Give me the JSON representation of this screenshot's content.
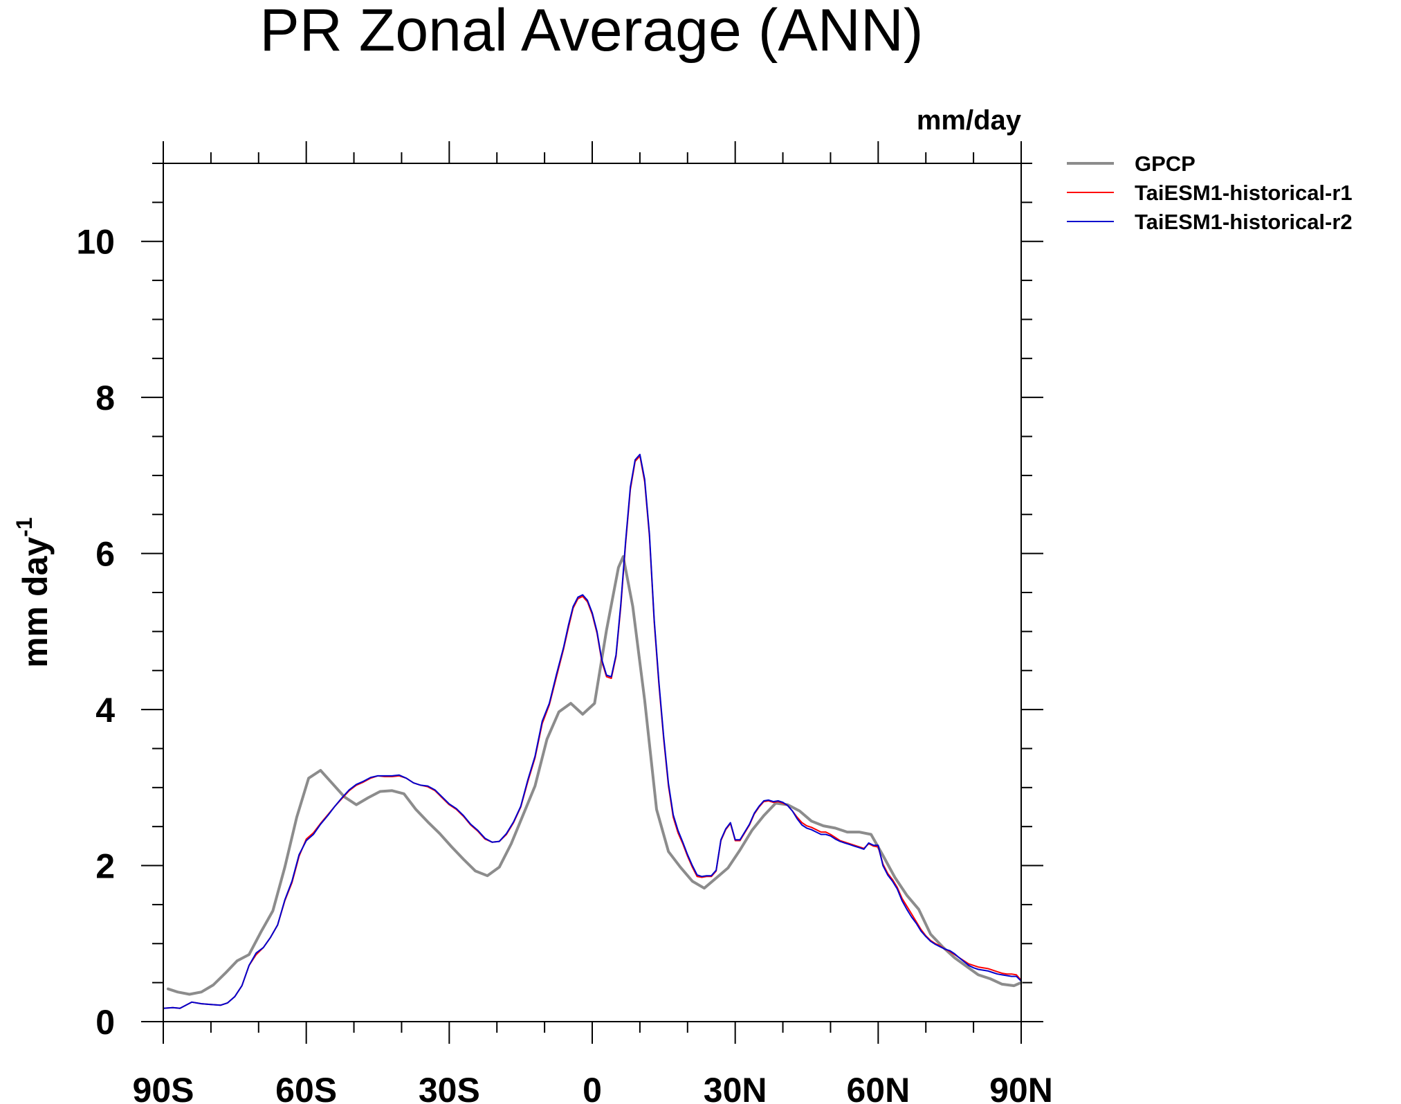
{
  "chart_data": {
    "type": "line",
    "title": "PR Zonal Average (ANN)",
    "units": "mm/day",
    "ylabel": "mm day",
    "ylabel_superscript": "-1",
    "xlim": [
      -90,
      90
    ],
    "ylim": [
      0,
      11
    ],
    "x_ticks": [
      {
        "value": -90,
        "label": "90S"
      },
      {
        "value": -60,
        "label": "60S"
      },
      {
        "value": -30,
        "label": "30S"
      },
      {
        "value": 0,
        "label": "0"
      },
      {
        "value": 30,
        "label": "30N"
      },
      {
        "value": 60,
        "label": "60N"
      },
      {
        "value": 90,
        "label": "90N"
      }
    ],
    "y_ticks": [
      {
        "value": 0,
        "label": "0"
      },
      {
        "value": 2,
        "label": "2"
      },
      {
        "value": 4,
        "label": "4"
      },
      {
        "value": 6,
        "label": "6"
      },
      {
        "value": 8,
        "label": "8"
      },
      {
        "value": 10,
        "label": "10"
      }
    ],
    "legend_position": "top-right outside",
    "series": [
      {
        "name": "GPCP",
        "color": "#8c8c8c",
        "x": [
          -89,
          -87,
          -84.5,
          -82,
          -79.5,
          -77,
          -74.5,
          -72,
          -69.5,
          -67,
          -64.5,
          -62,
          -59.5,
          -57,
          -54.5,
          -52,
          -49.5,
          -47,
          -44.5,
          -42,
          -39.5,
          -37,
          -34.5,
          -32,
          -29.5,
          -27,
          -24.5,
          -22,
          -19.5,
          -17,
          -14.5,
          -12,
          -9.5,
          -7,
          -4.5,
          -2,
          0.5,
          3,
          5.5,
          6.5,
          8.5,
          11,
          13.5,
          16,
          18.5,
          21,
          23.5,
          26,
          28.5,
          31,
          33.5,
          36,
          38.5,
          41,
          43.5,
          46,
          48.5,
          51,
          53.5,
          56,
          58.5,
          61,
          63.5,
          66,
          68.5,
          71,
          73.5,
          76,
          78.5,
          81,
          83.5,
          86,
          88.5,
          90
        ],
        "values": [
          0.42,
          0.38,
          0.35,
          0.38,
          0.47,
          0.62,
          0.78,
          0.86,
          1.15,
          1.42,
          1.98,
          2.62,
          3.12,
          3.22,
          3.05,
          2.88,
          2.78,
          2.87,
          2.95,
          2.96,
          2.92,
          2.72,
          2.56,
          2.41,
          2.24,
          2.08,
          1.93,
          1.87,
          1.98,
          2.28,
          2.65,
          3.02,
          3.62,
          3.97,
          4.08,
          3.94,
          4.08,
          5.02,
          5.82,
          5.96,
          5.32,
          4.12,
          2.72,
          2.18,
          1.98,
          1.8,
          1.71,
          1.84,
          1.97,
          2.2,
          2.45,
          2.64,
          2.8,
          2.78,
          2.7,
          2.57,
          2.51,
          2.48,
          2.43,
          2.43,
          2.4,
          2.13,
          1.85,
          1.62,
          1.44,
          1.12,
          0.96,
          0.82,
          0.71,
          0.6,
          0.55,
          0.48,
          0.46,
          0.5
        ]
      },
      {
        "name": "TaiESM1-historical-r1",
        "color": "#ff0000",
        "x": [
          -90,
          -88,
          -86.5,
          -84,
          -82,
          -80,
          -78,
          -76.5,
          -75,
          -73.5,
          -72,
          -70.5,
          -69,
          -67.5,
          -66,
          -64.5,
          -63,
          -61.5,
          -60,
          -58.5,
          -57,
          -55.5,
          -54,
          -52.5,
          -51,
          -49.5,
          -48,
          -46.5,
          -45,
          -43.5,
          -42,
          -40.5,
          -39,
          -37.5,
          -36,
          -34.5,
          -33,
          -31.5,
          -30,
          -28.5,
          -27,
          -25.5,
          -24,
          -22.5,
          -21,
          -19.5,
          -18,
          -16.5,
          -15,
          -13.5,
          -12,
          -10.5,
          -9,
          -7.5,
          -6,
          -5,
          -4,
          -3,
          -2,
          -1,
          0,
          1,
          2,
          3,
          4,
          5,
          6,
          7,
          8,
          9,
          10,
          11,
          12,
          13,
          14,
          15,
          16,
          17,
          18,
          19,
          20,
          21,
          22,
          23,
          24,
          25,
          26,
          27,
          28,
          29,
          30,
          31,
          32,
          33,
          34,
          35,
          36,
          37,
          38,
          39,
          40,
          41,
          42,
          43,
          44,
          45,
          46,
          47,
          48,
          49,
          50,
          51,
          52,
          53,
          54,
          55,
          56,
          57,
          58,
          59,
          60,
          61,
          62,
          63,
          64,
          65,
          66,
          67,
          68,
          69,
          70,
          71,
          72,
          73,
          74,
          75,
          76,
          77,
          78,
          79,
          80,
          81,
          82,
          83,
          84,
          85,
          86,
          87,
          88,
          89,
          90
        ],
        "values": [
          0.17,
          0.18,
          0.17,
          0.25,
          0.23,
          0.22,
          0.21,
          0.24,
          0.32,
          0.46,
          0.72,
          0.86,
          0.95,
          1.08,
          1.24,
          1.55,
          1.78,
          2.12,
          2.34,
          2.42,
          2.54,
          2.65,
          2.76,
          2.86,
          2.96,
          3.03,
          3.07,
          3.12,
          3.15,
          3.14,
          3.14,
          3.15,
          3.12,
          3.06,
          3.03,
          3.01,
          2.96,
          2.87,
          2.78,
          2.72,
          2.63,
          2.52,
          2.44,
          2.34,
          2.3,
          2.31,
          2.4,
          2.55,
          2.75,
          3.08,
          3.38,
          3.82,
          4.06,
          4.42,
          4.78,
          5.05,
          5.3,
          5.42,
          5.45,
          5.38,
          5.22,
          4.98,
          4.62,
          4.42,
          4.4,
          4.68,
          5.32,
          6.12,
          6.82,
          7.18,
          7.25,
          6.92,
          6.22,
          5.12,
          4.32,
          3.62,
          3.02,
          2.62,
          2.42,
          2.28,
          2.12,
          1.98,
          1.86,
          1.85,
          1.86,
          1.86,
          1.93,
          2.32,
          2.46,
          2.54,
          2.32,
          2.32,
          2.42,
          2.52,
          2.66,
          2.75,
          2.82,
          2.83,
          2.81,
          2.82,
          2.8,
          2.77,
          2.7,
          2.62,
          2.55,
          2.51,
          2.49,
          2.46,
          2.43,
          2.43,
          2.4,
          2.36,
          2.32,
          2.3,
          2.28,
          2.26,
          2.24,
          2.22,
          2.28,
          2.25,
          2.24,
          2.02,
          1.9,
          1.82,
          1.72,
          1.58,
          1.48,
          1.38,
          1.28,
          1.18,
          1.1,
          1.04,
          1.0,
          0.97,
          0.93,
          0.9,
          0.86,
          0.82,
          0.78,
          0.74,
          0.72,
          0.7,
          0.69,
          0.68,
          0.66,
          0.64,
          0.62,
          0.61,
          0.61,
          0.6,
          0.53
        ]
      },
      {
        "name": "TaiESM1-historical-r2",
        "color": "#0000cd",
        "x": [
          -90,
          -88,
          -86.5,
          -84,
          -82,
          -80,
          -78,
          -76.5,
          -75,
          -73.5,
          -72,
          -70.5,
          -69,
          -67.5,
          -66,
          -64.5,
          -63,
          -61.5,
          -60,
          -58.5,
          -57,
          -55.5,
          -54,
          -52.5,
          -51,
          -49.5,
          -48,
          -46.5,
          -45,
          -43.5,
          -42,
          -40.5,
          -39,
          -37.5,
          -36,
          -34.5,
          -33,
          -31.5,
          -30,
          -28.5,
          -27,
          -25.5,
          -24,
          -22.5,
          -21,
          -19.5,
          -18,
          -16.5,
          -15,
          -13.5,
          -12,
          -10.5,
          -9,
          -7.5,
          -6,
          -5,
          -4,
          -3,
          -2,
          -1,
          0,
          1,
          2,
          3,
          4,
          5,
          6,
          7,
          8,
          9,
          10,
          11,
          12,
          13,
          14,
          15,
          16,
          17,
          18,
          19,
          20,
          21,
          22,
          23,
          24,
          25,
          26,
          27,
          28,
          29,
          30,
          31,
          32,
          33,
          34,
          35,
          36,
          37,
          38,
          39,
          40,
          41,
          42,
          43,
          44,
          45,
          46,
          47,
          48,
          49,
          50,
          51,
          52,
          53,
          54,
          55,
          56,
          57,
          58,
          59,
          60,
          61,
          62,
          63,
          64,
          65,
          66,
          67,
          68,
          69,
          70,
          71,
          72,
          73,
          74,
          75,
          76,
          77,
          78,
          79,
          80,
          81,
          82,
          83,
          84,
          85,
          86,
          87,
          88,
          89,
          90
        ],
        "values": [
          0.17,
          0.18,
          0.17,
          0.25,
          0.23,
          0.22,
          0.21,
          0.24,
          0.32,
          0.46,
          0.72,
          0.88,
          0.95,
          1.08,
          1.24,
          1.56,
          1.8,
          2.14,
          2.32,
          2.4,
          2.53,
          2.64,
          2.76,
          2.87,
          2.97,
          3.04,
          3.08,
          3.13,
          3.15,
          3.15,
          3.15,
          3.16,
          3.12,
          3.06,
          3.03,
          3.02,
          2.97,
          2.88,
          2.79,
          2.73,
          2.64,
          2.53,
          2.45,
          2.35,
          2.3,
          2.31,
          2.41,
          2.56,
          2.76,
          3.1,
          3.4,
          3.85,
          4.08,
          4.45,
          4.8,
          5.08,
          5.32,
          5.44,
          5.47,
          5.4,
          5.24,
          5.0,
          4.64,
          4.44,
          4.42,
          4.7,
          5.35,
          6.15,
          6.85,
          7.2,
          7.27,
          6.95,
          6.25,
          5.15,
          4.35,
          3.65,
          3.05,
          2.65,
          2.45,
          2.3,
          2.14,
          2.0,
          1.88,
          1.86,
          1.87,
          1.87,
          1.94,
          2.33,
          2.47,
          2.55,
          2.33,
          2.33,
          2.43,
          2.53,
          2.67,
          2.76,
          2.83,
          2.84,
          2.82,
          2.83,
          2.81,
          2.77,
          2.7,
          2.6,
          2.52,
          2.48,
          2.46,
          2.43,
          2.4,
          2.4,
          2.38,
          2.34,
          2.31,
          2.29,
          2.27,
          2.25,
          2.23,
          2.21,
          2.29,
          2.26,
          2.26,
          2.0,
          1.88,
          1.8,
          1.7,
          1.55,
          1.44,
          1.34,
          1.26,
          1.16,
          1.09,
          1.03,
          0.99,
          0.96,
          0.93,
          0.91,
          0.87,
          0.82,
          0.77,
          0.72,
          0.69,
          0.67,
          0.66,
          0.65,
          0.63,
          0.61,
          0.6,
          0.59,
          0.58,
          0.58,
          0.52
        ]
      }
    ]
  }
}
